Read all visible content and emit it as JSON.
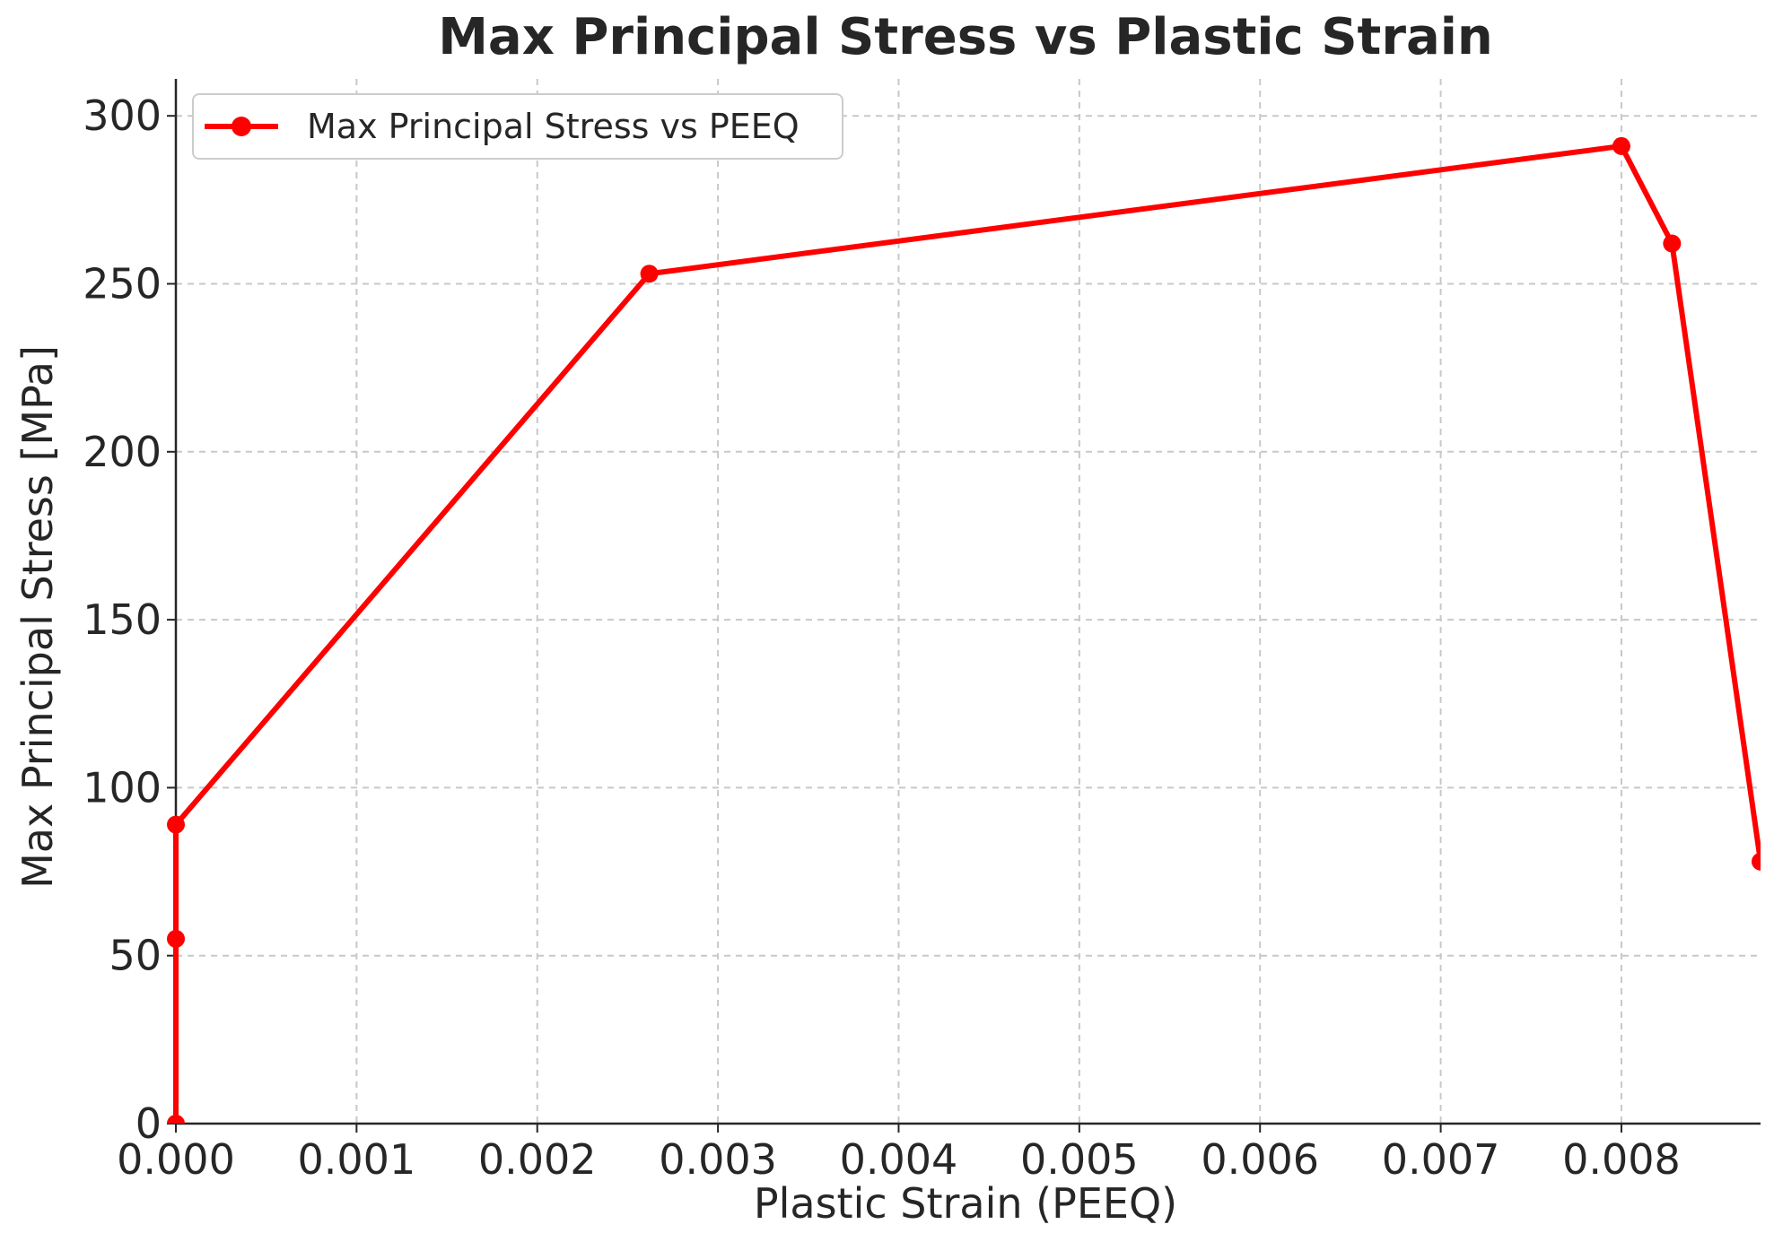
{
  "chart_data": {
    "type": "line",
    "title": "Max Principal Stress vs Plastic Strain",
    "xlabel": "Plastic Strain (PEEQ)",
    "ylabel": "Max Principal Stress [MPa]",
    "xlim": [
      0.0,
      0.00877
    ],
    "ylim": [
      0,
      311
    ],
    "x_ticks": [
      "0.000",
      "0.001",
      "0.002",
      "0.003",
      "0.004",
      "0.005",
      "0.006",
      "0.007",
      "0.008"
    ],
    "x_tick_values": [
      0.0,
      0.001,
      0.002,
      0.003,
      0.004,
      0.005,
      0.006,
      0.007,
      0.008
    ],
    "y_ticks": [
      "0",
      "50",
      "100",
      "150",
      "200",
      "250",
      "300"
    ],
    "y_tick_values": [
      0,
      50,
      100,
      150,
      200,
      250,
      300
    ],
    "grid": true,
    "legend_position": "top-left",
    "series": [
      {
        "name": "Max Principal Stress vs PEEQ",
        "color": "#ff0000",
        "marker": "circle",
        "x": [
          0.0,
          0.0,
          0.0,
          0.00262,
          0.008,
          0.00828,
          0.00877
        ],
        "y": [
          0,
          55,
          89,
          253,
          291,
          262,
          78
        ]
      }
    ]
  }
}
